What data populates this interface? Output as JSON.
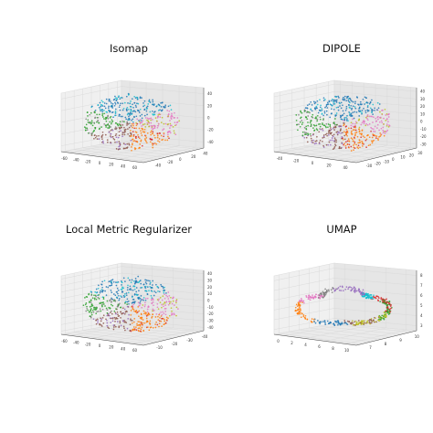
{
  "colors": {
    "point_palette": [
      "#2ca02c",
      "#8c564b",
      "#1f77b4",
      "#ff7f0e",
      "#e377c2",
      "#7f7f7f",
      "#9467bd",
      "#17becf",
      "#d62728",
      "#bcbd22"
    ],
    "pane_left": "#f0f0f0",
    "pane_right": "#e6e6e6",
    "pane_floor": "#eaeaea"
  },
  "chart_data": [
    {
      "type": "scatter",
      "projection": "3d",
      "title": "Isomap",
      "x_ticks": [
        "-60",
        "-40",
        "-20",
        "0",
        "20",
        "40",
        "60"
      ],
      "y_ticks": [
        "-40",
        "-20",
        "0",
        "20",
        "40"
      ],
      "z_ticks": [
        "-40",
        "-20",
        "0",
        "20",
        "40"
      ],
      "xlim": [
        -60,
        60
      ],
      "ylim": [
        -40,
        40
      ],
      "zlim": [
        -40,
        40
      ],
      "grid": true,
      "shape": "blob",
      "n_points": 620
    },
    {
      "type": "scatter",
      "projection": "3d",
      "title": "DIPOLE",
      "x_ticks": [
        "-40",
        "-20",
        "0",
        "20",
        "40"
      ],
      "y_ticks": [
        "-30",
        "-20",
        "-10",
        "0",
        "10",
        "20",
        "30"
      ],
      "z_ticks": [
        "-30",
        "-20",
        "-10",
        "0",
        "10",
        "20",
        "30",
        "40"
      ],
      "xlim": [
        -40,
        40
      ],
      "ylim": [
        -30,
        30
      ],
      "zlim": [
        -30,
        40
      ],
      "grid": true,
      "shape": "blob",
      "n_points": 620
    },
    {
      "type": "scatter",
      "projection": "3d",
      "title": "Local Metric Regularizer",
      "x_ticks": [
        "-60",
        "-40",
        "-20",
        "0",
        "20",
        "40",
        "60"
      ],
      "y_ticks": [
        "-10",
        "-20",
        "-30",
        "-40"
      ],
      "z_ticks": [
        "-40",
        "-30",
        "-20",
        "-10",
        "0",
        "10",
        "20",
        "30",
        "40"
      ],
      "xlim": [
        -60,
        60
      ],
      "ylim": [
        -40,
        -10
      ],
      "zlim": [
        -40,
        40
      ],
      "grid": true,
      "shape": "blob",
      "n_points": 620
    },
    {
      "type": "scatter",
      "projection": "3d",
      "title": "UMAP",
      "x_ticks": [
        "0",
        "2",
        "4",
        "6",
        "8",
        "10"
      ],
      "y_ticks": [
        "7",
        "8",
        "9",
        "10"
      ],
      "z_ticks": [
        "3",
        "4",
        "5",
        "6",
        "7",
        "8"
      ],
      "xlim": [
        0,
        10
      ],
      "ylim": [
        7,
        10
      ],
      "zlim": [
        3,
        8
      ],
      "grid": true,
      "shape": "curve",
      "n_points": 520
    }
  ]
}
